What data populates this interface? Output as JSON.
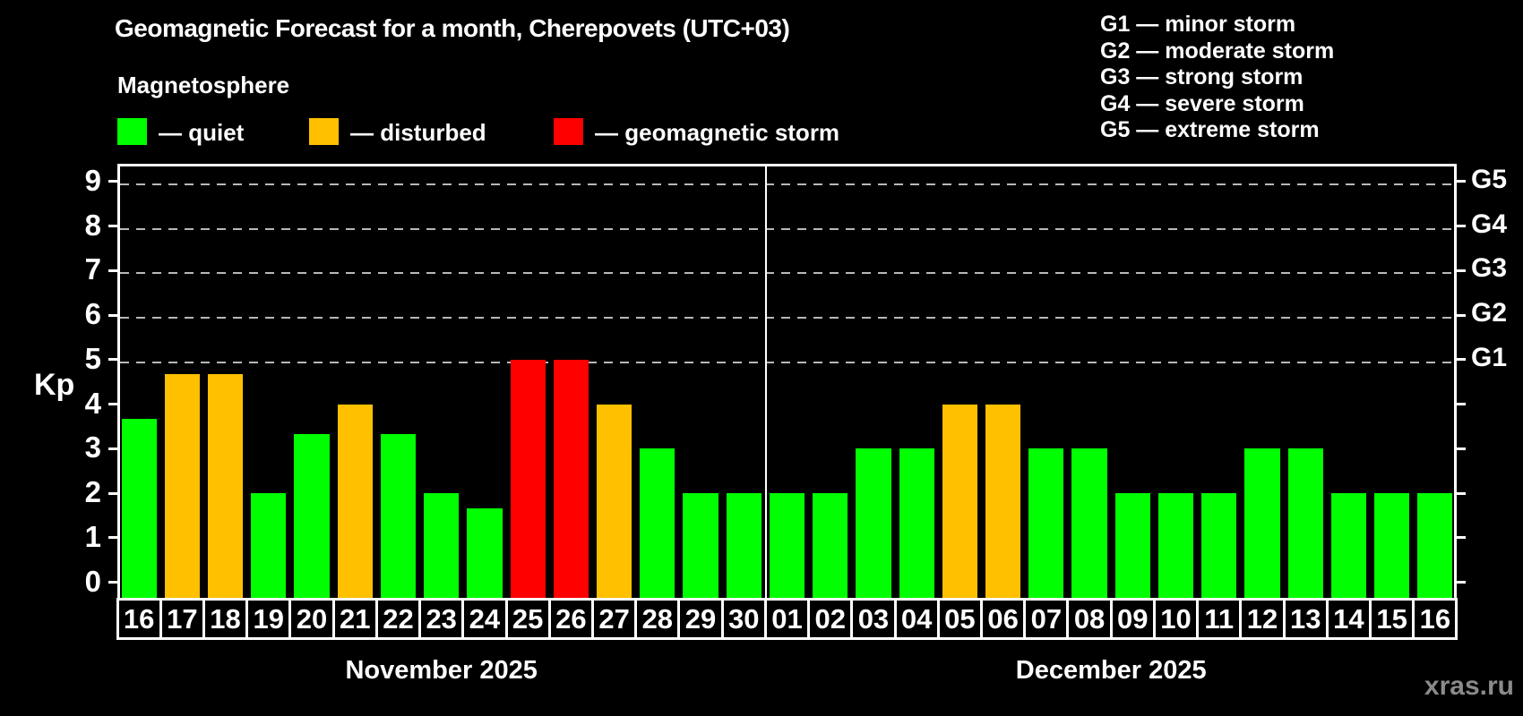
{
  "title": "Geomagnetic Forecast for a month, Cherepovets (UTC+03)",
  "subtitle": "Magnetosphere",
  "watermark": "xras.ru",
  "legend": {
    "items": [
      {
        "key": "quiet",
        "label": "— quiet",
        "color": "#00ff00"
      },
      {
        "key": "disturbed",
        "label": "— disturbed",
        "color": "#ffc000"
      },
      {
        "key": "storm",
        "label": "— geomagnetic storm",
        "color": "#ff0000"
      }
    ]
  },
  "g_legend": [
    "G1 — minor storm",
    "G2 — moderate storm",
    "G3 — strong storm",
    "G4 — severe storm",
    "G5 — extreme storm"
  ],
  "chart_data": {
    "type": "bar",
    "title": "Geomagnetic Forecast for a month, Cherepovets (UTC+03)",
    "ylabel": "Kp",
    "ylim": [
      0,
      9
    ],
    "y_ticks": [
      0,
      1,
      2,
      3,
      4,
      5,
      6,
      7,
      8,
      9
    ],
    "gridlines": [
      5,
      6,
      7,
      8,
      9
    ],
    "grid_style": "dashed",
    "legend_position": "top-left",
    "right_axis": [
      {
        "kp": 5,
        "label": "G1"
      },
      {
        "kp": 6,
        "label": "G2"
      },
      {
        "kp": 7,
        "label": "G3"
      },
      {
        "kp": 8,
        "label": "G4"
      },
      {
        "kp": 9,
        "label": "G5"
      }
    ],
    "level_colors": {
      "quiet": "#00ff00",
      "disturbed": "#ffc000",
      "storm": "#ff0000"
    },
    "months": [
      {
        "name": "november",
        "label": "November 2025",
        "bars": [
          {
            "day": "16",
            "kp": 3.67,
            "level": "quiet"
          },
          {
            "day": "17",
            "kp": 4.67,
            "level": "disturbed"
          },
          {
            "day": "18",
            "kp": 4.67,
            "level": "disturbed"
          },
          {
            "day": "19",
            "kp": 2,
            "level": "quiet"
          },
          {
            "day": "20",
            "kp": 3.33,
            "level": "quiet"
          },
          {
            "day": "21",
            "kp": 4,
            "level": "disturbed"
          },
          {
            "day": "22",
            "kp": 3.33,
            "level": "quiet"
          },
          {
            "day": "23",
            "kp": 2,
            "level": "quiet"
          },
          {
            "day": "24",
            "kp": 1.67,
            "level": "quiet"
          },
          {
            "day": "25",
            "kp": 5,
            "level": "storm"
          },
          {
            "day": "26",
            "kp": 5,
            "level": "storm"
          },
          {
            "day": "27",
            "kp": 4,
            "level": "disturbed"
          },
          {
            "day": "28",
            "kp": 3,
            "level": "quiet"
          },
          {
            "day": "29",
            "kp": 2,
            "level": "quiet"
          },
          {
            "day": "30",
            "kp": 2,
            "level": "quiet"
          }
        ]
      },
      {
        "name": "december",
        "label": "December 2025",
        "bars": [
          {
            "day": "01",
            "kp": 2,
            "level": "quiet"
          },
          {
            "day": "02",
            "kp": 2,
            "level": "quiet"
          },
          {
            "day": "03",
            "kp": 3,
            "level": "quiet"
          },
          {
            "day": "04",
            "kp": 3,
            "level": "quiet"
          },
          {
            "day": "05",
            "kp": 4,
            "level": "disturbed"
          },
          {
            "day": "06",
            "kp": 4,
            "level": "disturbed"
          },
          {
            "day": "07",
            "kp": 3,
            "level": "quiet"
          },
          {
            "day": "08",
            "kp": 3,
            "level": "quiet"
          },
          {
            "day": "09",
            "kp": 2,
            "level": "quiet"
          },
          {
            "day": "10",
            "kp": 2,
            "level": "quiet"
          },
          {
            "day": "11",
            "kp": 2,
            "level": "quiet"
          },
          {
            "day": "12",
            "kp": 3,
            "level": "quiet"
          },
          {
            "day": "13",
            "kp": 3,
            "level": "quiet"
          },
          {
            "day": "14",
            "kp": 2,
            "level": "quiet"
          },
          {
            "day": "15",
            "kp": 2,
            "level": "quiet"
          },
          {
            "day": "16",
            "kp": 2,
            "level": "quiet"
          }
        ]
      }
    ]
  }
}
